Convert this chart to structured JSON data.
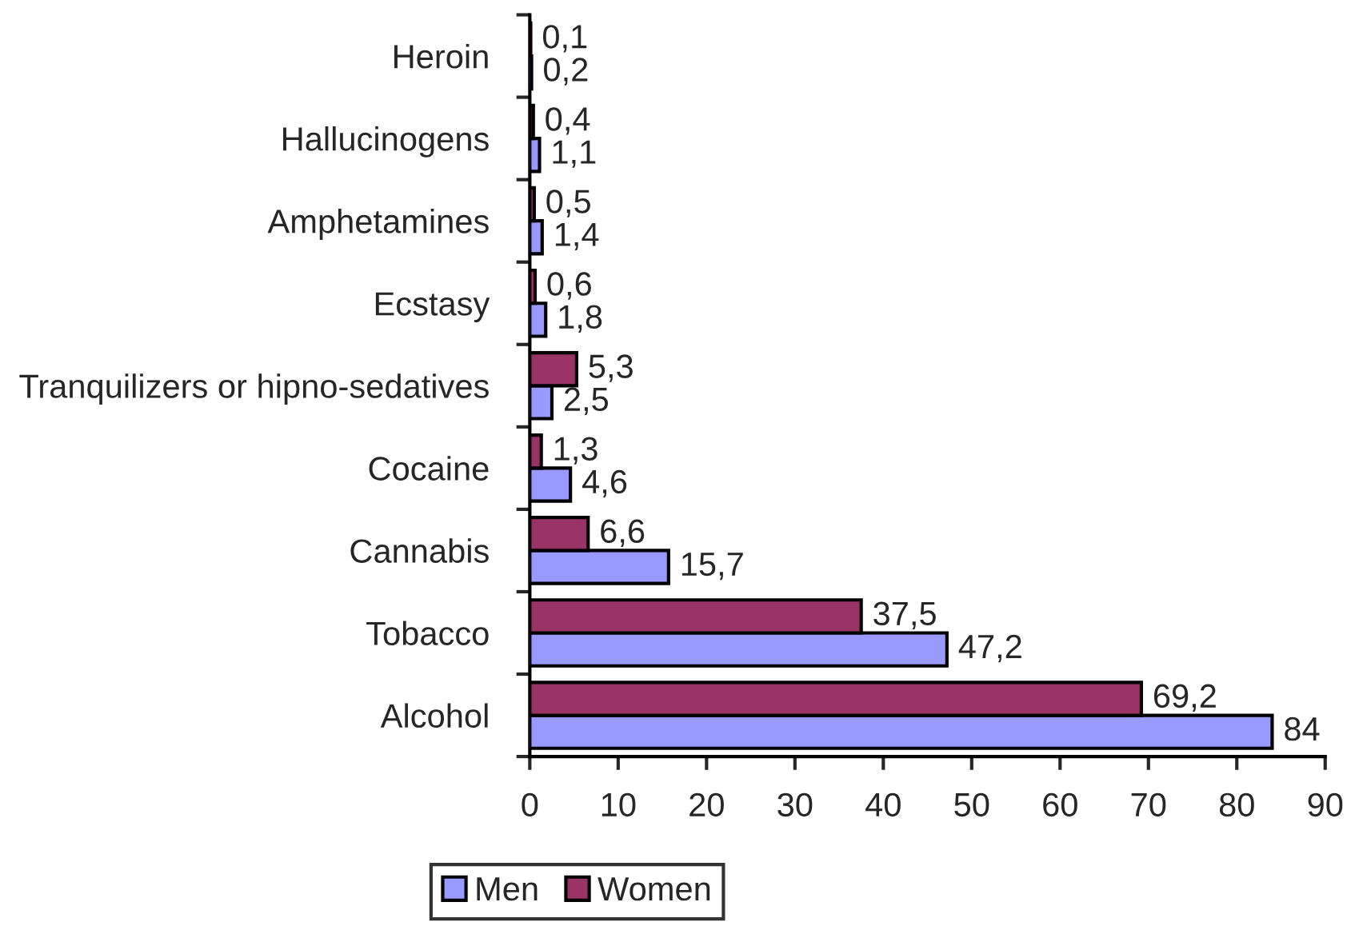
{
  "chart_data": {
    "type": "bar",
    "orientation": "horizontal",
    "categories": [
      "Heroin",
      "Hallucinogens",
      "Amphetamines",
      "Ecstasy",
      "Tranquilizers or hipno-sedatives",
      "Cocaine",
      "Cannabis",
      "Tobacco",
      "Alcohol"
    ],
    "series": [
      {
        "name": "Men",
        "color": "#9999ff",
        "values": [
          0.2,
          1.1,
          1.4,
          1.8,
          2.5,
          4.6,
          15.7,
          47.2,
          84
        ],
        "value_labels": [
          "0,2",
          "1,1",
          "1,4",
          "1,8",
          "2,5",
          "4,6",
          "15,7",
          "47,2",
          "84"
        ]
      },
      {
        "name": "Women",
        "color": "#993366",
        "values": [
          0.1,
          0.4,
          0.5,
          0.6,
          5.3,
          1.3,
          6.6,
          37.5,
          69.2
        ],
        "value_labels": [
          "0,1",
          "0,4",
          "0,5",
          "0,6",
          "5,3",
          "1,3",
          "6,6",
          "37,5",
          "69,2"
        ]
      }
    ],
    "xlim": [
      0,
      90
    ],
    "xticks": [
      0,
      10,
      20,
      30,
      40,
      50,
      60,
      70,
      80,
      90
    ],
    "grid": false,
    "legend": "bottom"
  }
}
